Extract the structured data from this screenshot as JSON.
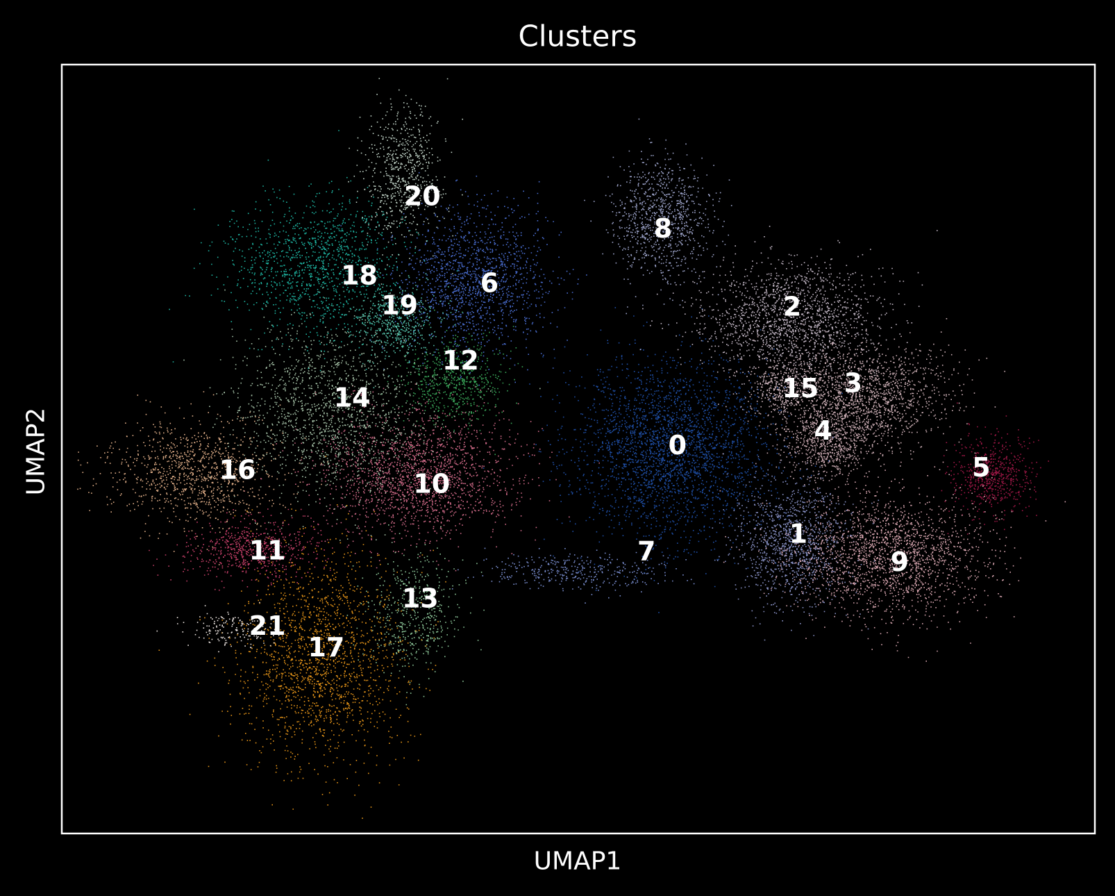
{
  "chart_data": {
    "type": "scatter",
    "title": "Clusters",
    "xlabel": "UMAP1",
    "ylabel": "UMAP2",
    "xlim": [
      0,
      100
    ],
    "ylim": [
      0,
      100
    ],
    "grid": false,
    "legend": "on data",
    "background": "#000000",
    "series": [
      {
        "label": "0",
        "color": "#1f4fa8",
        "center": [
          59.0,
          50.0
        ],
        "spread": [
          7.5,
          9.5
        ],
        "n": 2600
      },
      {
        "label": "1",
        "color": "#8a93c8",
        "center": [
          70.5,
          38.0
        ],
        "spread": [
          4.5,
          6.5
        ],
        "n": 1100
      },
      {
        "label": "2",
        "color": "#c4b8c6",
        "center": [
          70.5,
          67.0
        ],
        "spread": [
          7.0,
          6.0
        ],
        "n": 1600
      },
      {
        "label": "3",
        "color": "#cdb0b6",
        "center": [
          77.5,
          57.0
        ],
        "spread": [
          7.0,
          5.5
        ],
        "n": 1500
      },
      {
        "label": "4",
        "color": "#c8a8b0",
        "center": [
          74.0,
          51.0
        ],
        "spread": [
          3.5,
          4.0
        ],
        "n": 700
      },
      {
        "label": "5",
        "color": "#9e1746",
        "center": [
          90.0,
          46.5
        ],
        "spread": [
          3.0,
          4.0
        ],
        "n": 600
      },
      {
        "label": "6",
        "color": "#4a6ed2",
        "center": [
          40.0,
          72.0
        ],
        "spread": [
          6.0,
          7.5
        ],
        "n": 1400
      },
      {
        "label": "7",
        "color": "#7b8fd2",
        "center": [
          50.0,
          34.0
        ],
        "spread": [
          7.5,
          2.0
        ],
        "n": 350
      },
      {
        "label": "8",
        "color": "#9ea5cc",
        "center": [
          58.0,
          80.0
        ],
        "spread": [
          3.8,
          6.5
        ],
        "n": 900
      },
      {
        "label": "9",
        "color": "#d8a6b0",
        "center": [
          80.0,
          36.0
        ],
        "spread": [
          7.5,
          6.5
        ],
        "n": 1900
      },
      {
        "label": "10",
        "color": "#d06a88",
        "center": [
          34.5,
          46.5
        ],
        "spread": [
          7.5,
          6.5
        ],
        "n": 1800
      },
      {
        "label": "11",
        "color": "#c8406a",
        "center": [
          18.5,
          37.0
        ],
        "spread": [
          5.5,
          3.0
        ],
        "n": 600
      },
      {
        "label": "12",
        "color": "#3aa85a",
        "center": [
          38.0,
          59.0
        ],
        "spread": [
          4.0,
          4.5
        ],
        "n": 600
      },
      {
        "label": "13",
        "color": "#8ec89a",
        "center": [
          34.0,
          29.0
        ],
        "spread": [
          3.5,
          6.0
        ],
        "n": 500
      },
      {
        "label": "14",
        "color": "#a6c2a8",
        "center": [
          26.0,
          55.0
        ],
        "spread": [
          7.0,
          9.0
        ],
        "n": 1500
      },
      {
        "label": "15",
        "color": "#cfb6be",
        "center": [
          70.0,
          58.0
        ],
        "spread": [
          3.0,
          3.0
        ],
        "n": 400
      },
      {
        "label": "16",
        "color": "#e0ae88",
        "center": [
          13.0,
          47.0
        ],
        "spread": [
          6.5,
          5.5
        ],
        "n": 1000
      },
      {
        "label": "17",
        "color": "#e59418",
        "center": [
          25.0,
          23.0
        ],
        "spread": [
          6.5,
          11.0
        ],
        "n": 1700
      },
      {
        "label": "18",
        "color": "#1eb7a4",
        "center": [
          24.5,
          74.0
        ],
        "spread": [
          7.0,
          7.0
        ],
        "n": 1200
      },
      {
        "label": "19",
        "color": "#58c8b0",
        "center": [
          32.0,
          66.5
        ],
        "spread": [
          3.5,
          4.0
        ],
        "n": 500
      },
      {
        "label": "20",
        "color": "#c2d4c8",
        "center": [
          33.0,
          86.0
        ],
        "spread": [
          3.0,
          7.0
        ],
        "n": 650
      },
      {
        "label": "21",
        "color": "#f0e8e4",
        "center": [
          16.0,
          26.5
        ],
        "spread": [
          4.0,
          2.0
        ],
        "n": 150
      }
    ],
    "cluster_labels": [
      {
        "text": "0",
        "x": 59.6,
        "y": 50.5
      },
      {
        "text": "1",
        "x": 71.3,
        "y": 39.0
      },
      {
        "text": "2",
        "x": 70.7,
        "y": 68.5
      },
      {
        "text": "3",
        "x": 76.6,
        "y": 58.6
      },
      {
        "text": "4",
        "x": 73.7,
        "y": 52.4
      },
      {
        "text": "5",
        "x": 89.0,
        "y": 47.6
      },
      {
        "text": "6",
        "x": 41.4,
        "y": 71.6
      },
      {
        "text": "7",
        "x": 56.6,
        "y": 36.7
      },
      {
        "text": "8",
        "x": 58.2,
        "y": 78.7
      },
      {
        "text": "9",
        "x": 81.1,
        "y": 35.3
      },
      {
        "text": "10",
        "x": 35.8,
        "y": 45.5
      },
      {
        "text": "11",
        "x": 19.9,
        "y": 36.8
      },
      {
        "text": "12",
        "x": 38.6,
        "y": 61.5
      },
      {
        "text": "13",
        "x": 34.7,
        "y": 30.6
      },
      {
        "text": "14",
        "x": 28.1,
        "y": 56.7
      },
      {
        "text": "15",
        "x": 71.5,
        "y": 57.9
      },
      {
        "text": "16",
        "x": 17.0,
        "y": 47.3
      },
      {
        "text": "17",
        "x": 25.6,
        "y": 24.2
      },
      {
        "text": "18",
        "x": 28.8,
        "y": 72.6
      },
      {
        "text": "19",
        "x": 32.7,
        "y": 68.7
      },
      {
        "text": "20",
        "x": 34.9,
        "y": 82.9
      },
      {
        "text": "21",
        "x": 19.9,
        "y": 27.0
      }
    ]
  }
}
